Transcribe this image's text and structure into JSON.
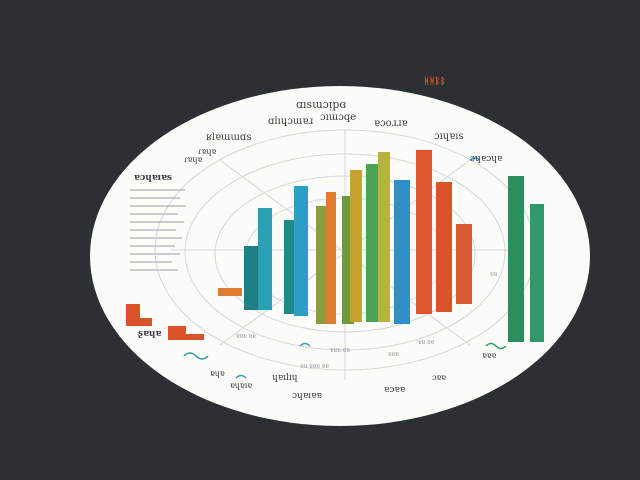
{
  "illustration": {
    "background_color": "#2c2f33",
    "disc_color": "#fbfbf8",
    "ring_color": "#d2d8dc",
    "corner_mark": {
      "text": "ᚻᚻᛒᛒ",
      "color": "#d9542b"
    },
    "labels": [
      {
        "id": "top-title",
        "text": "ɑısɯɔᴉpɞ"
      },
      {
        "id": "sub-left",
        "text": "ɑlıɥɔɯɐɹ"
      },
      {
        "id": "sub-mid",
        "text": "ɔıɯɔqe"
      },
      {
        "id": "sub-right",
        "text": "ɐɔoɹɹɐ"
      },
      {
        "id": "left-upper",
        "text": "ʁlɐɯɯɑs"
      },
      {
        "id": "right-upper",
        "text": "ɔıɥɐıs"
      },
      {
        "id": "left-small",
        "text": "ɾɐɥɐ"
      },
      {
        "id": "left-small-2",
        "text": "ɾɐɥɐ"
      },
      {
        "id": "left-block",
        "text": "ɐɔɥɐıɐs"
      },
      {
        "id": "right-mid",
        "text": "ɔɥɐɔɥɐ"
      },
      {
        "id": "bottom-left-1",
        "text": "ɐɥɐ"
      },
      {
        "id": "bottom-left-2",
        "text": "ɐɥɐıɐ"
      },
      {
        "id": "bottom-mid",
        "text": "ɥɐılıɥ"
      },
      {
        "id": "bottom-center",
        "text": "ɔɥɐıɐɐ"
      },
      {
        "id": "bottom-right",
        "text": "ɐɔɐɐ"
      },
      {
        "id": "bottom-far-right",
        "text": "ɔɐɐ"
      },
      {
        "id": "left-orange",
        "text": "ʂɐɥɐ"
      },
      {
        "id": "right-small",
        "text": "ɐɐɐ"
      }
    ],
    "bars": [
      {
        "color": "#1f7f86"
      },
      {
        "color": "#2ba0b4"
      },
      {
        "color": "#1f8a8a"
      },
      {
        "color": "#2c9fc7"
      },
      {
        "color": "#8e9a3c"
      },
      {
        "color": "#e07a2e"
      },
      {
        "color": "#6f9a3a"
      },
      {
        "color": "#c8a22f"
      },
      {
        "color": "#4aa357"
      },
      {
        "color": "#b9b33d"
      },
      {
        "color": "#2e8fc9"
      },
      {
        "color": "#e0562f"
      },
      {
        "color": "#d9542b"
      },
      {
        "color": "#d65a34"
      },
      {
        "color": "#2b8e5e"
      },
      {
        "color": "#2e9a6a"
      }
    ]
  }
}
